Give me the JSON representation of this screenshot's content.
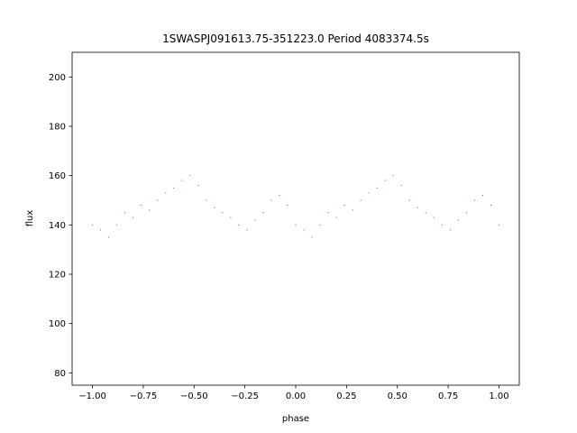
{
  "chart_data": {
    "type": "scatter",
    "title": "1SWASPJ091613.75-351223.0 Period 4083374.5s",
    "xlabel": "phase",
    "ylabel": "flux",
    "xlim": [
      -1.1,
      1.1
    ],
    "ylim": [
      75,
      210
    ],
    "xticks": [
      -1.0,
      -0.75,
      -0.5,
      -0.25,
      0.0,
      0.25,
      0.5,
      0.75,
      1.0
    ],
    "xtick_labels": [
      "−1.00",
      "−0.75",
      "−0.50",
      "−0.25",
      "0.00",
      "0.25",
      "0.50",
      "0.75",
      "1.00"
    ],
    "yticks": [
      80,
      100,
      120,
      140,
      160,
      180,
      200
    ],
    "ytick_labels": [
      "80",
      "100",
      "120",
      "140",
      "160",
      "180",
      "200"
    ],
    "marker_color": "#1f77b4",
    "grid": false,
    "series": [
      {
        "x": [
          -1.0,
          -0.96,
          -0.92,
          -0.88,
          -0.84,
          -0.8,
          -0.76,
          -0.72,
          -0.68,
          -0.64,
          -0.6,
          -0.56,
          -0.52,
          -0.48,
          -0.44,
          -0.4,
          -0.36,
          -0.32,
          -0.28,
          -0.24,
          -0.2,
          -0.16,
          -0.12,
          -0.08,
          -0.04,
          0.0,
          0.04,
          0.08,
          0.12,
          0.16,
          0.2,
          0.24,
          0.28,
          0.32,
          0.36,
          0.4,
          0.44,
          0.48,
          0.52,
          0.56,
          0.6,
          0.64,
          0.68,
          0.72,
          0.76,
          0.8,
          0.84,
          0.88,
          0.92,
          0.96,
          1.0
        ],
        "y": [
          140,
          138,
          135,
          140,
          145,
          143,
          148,
          146,
          150,
          153,
          155,
          158,
          160,
          156,
          150,
          147,
          145,
          143,
          140,
          138,
          142,
          145,
          150,
          152,
          148,
          140,
          138,
          135,
          140,
          145,
          143,
          148,
          146,
          150,
          153,
          155,
          158,
          160,
          156,
          150,
          147,
          145,
          143,
          140,
          138,
          142,
          145,
          150,
          152,
          148,
          140
        ]
      }
    ]
  }
}
